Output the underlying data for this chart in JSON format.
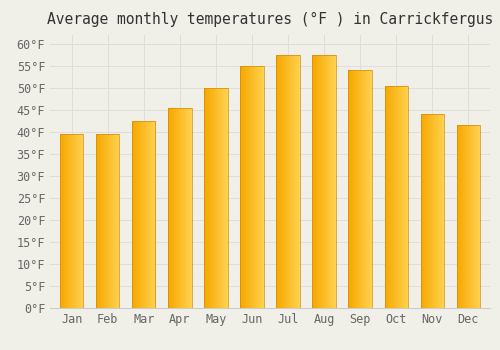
{
  "title": "Average monthly temperatures (°F ) in Carrickfergus",
  "months": [
    "Jan",
    "Feb",
    "Mar",
    "Apr",
    "May",
    "Jun",
    "Jul",
    "Aug",
    "Sep",
    "Oct",
    "Nov",
    "Dec"
  ],
  "values": [
    39.5,
    39.5,
    42.5,
    45.5,
    50.0,
    55.0,
    57.5,
    57.5,
    54.0,
    50.5,
    44.0,
    41.5
  ],
  "bar_color_left": "#F5A800",
  "bar_color_right": "#FFD966",
  "background_color": "#F0EFE8",
  "ylim": [
    0,
    62
  ],
  "yticks": [
    0,
    5,
    10,
    15,
    20,
    25,
    30,
    35,
    40,
    45,
    50,
    55,
    60
  ],
  "title_fontsize": 10.5,
  "tick_fontsize": 8.5,
  "grid_color": "#DEDEDE",
  "bar_width": 0.65
}
